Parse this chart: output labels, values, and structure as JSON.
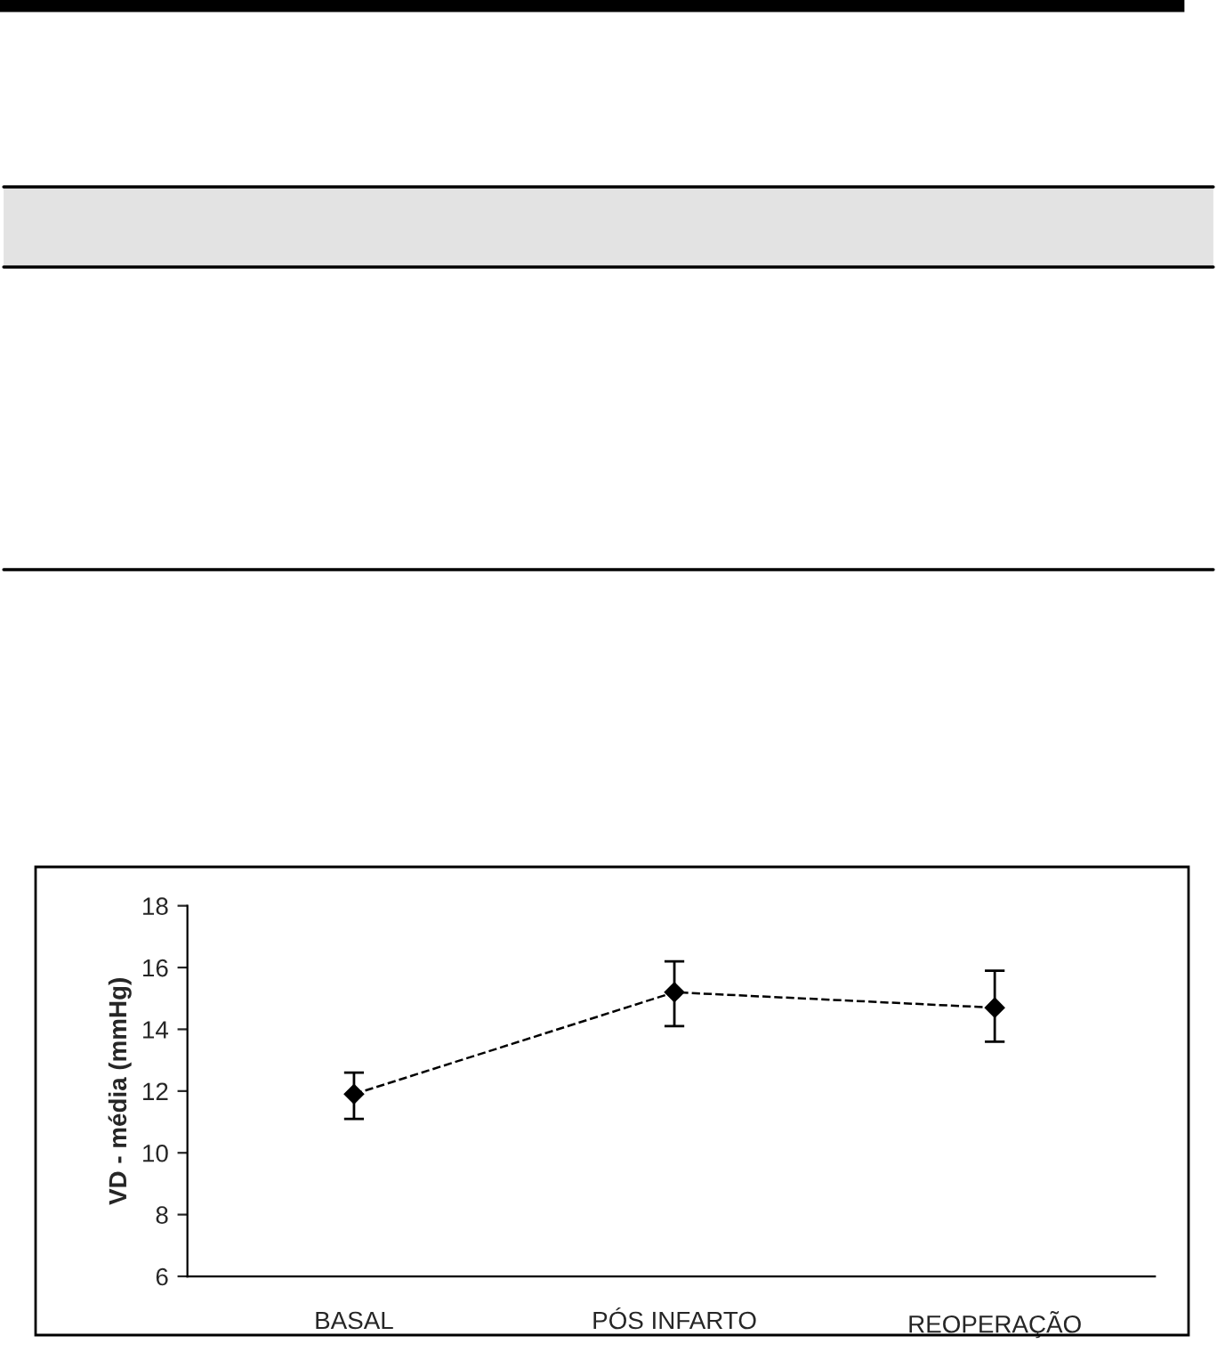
{
  "chart_data": {
    "type": "line",
    "ylabel": "VD - média (mmHg)",
    "categories": [
      "BASAL",
      "PÓS INFARTO",
      "REOPERAÇÃO"
    ],
    "series": [
      {
        "color": "#000000",
        "values": [
          11.9,
          15.2,
          14.7
        ],
        "errors": [
          [
            11.1,
            12.6
          ],
          [
            14.1,
            16.2
          ],
          [
            13.6,
            15.9
          ]
        ]
      }
    ],
    "ylim": [
      6,
      18
    ],
    "yticks": [
      6,
      8,
      10,
      12,
      14,
      16,
      18
    ],
    "grid": false,
    "legend": false,
    "marker": "diamond",
    "line_style": "dashed"
  }
}
